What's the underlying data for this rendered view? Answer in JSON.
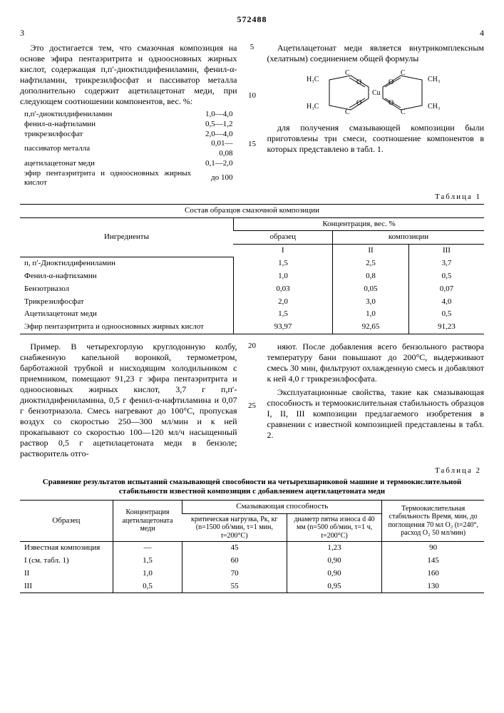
{
  "header": {
    "page_left": "3",
    "patent": "572488",
    "page_right": "4"
  },
  "gutter": [
    "5",
    "10",
    "15",
    "20",
    "25"
  ],
  "left": {
    "p1": "Это достигается тем, что смазочная композиция на основе эфира пентаэритрита и одноосновных жирных кислот, содержащая п,п′-диоктилдифениламин, фенил-α-нафтиламин, трикрезилфосфат и пассиватор металла дополнительно содержит ацетилацетонат меди, при следующем соотношении компонентов, вес. %:",
    "comp": [
      [
        "п,п′-диоктилдифениламин",
        "1,0—4,0"
      ],
      [
        "фенил-α-нафтиламин",
        "0,5—1,2"
      ],
      [
        "трикрезилфосфат",
        "2,0—4,0"
      ],
      [
        "пассиватор металла",
        "0,01—0,08"
      ],
      [
        "ацетилацетонат меди",
        "0,1—2,0"
      ],
      [
        "эфир пентаэритрита и одноосновных жирных кислот",
        "до 100"
      ]
    ]
  },
  "right": {
    "p1": "Ацетилацетонат меди является внутрикомплексным (хелатным) соединением общей формулы",
    "p2": "для получения смазывающей композиции были приготовлены три смеси, соотношение компонентов в которых представлено в табл. 1."
  },
  "table1": {
    "label": "Таблица 1",
    "head0": "Состав образцов смазочной композиции",
    "h_ing": "Ингредиенты",
    "h_conc": "Концентрация, вес. %",
    "h_obr": "образец",
    "h_komp": "композиции",
    "cols": [
      "I",
      "II",
      "III"
    ],
    "rows": [
      [
        "п, п′-Диоктилдифениламин",
        "1,5",
        "2,5",
        "3,7"
      ],
      [
        "Фенил-α-нафтиламин",
        "1,0",
        "0,8",
        "0,5"
      ],
      [
        "Бензотриазол",
        "0,03",
        "0,05",
        "0,07"
      ],
      [
        "Трикрезилфосфат",
        "2,0",
        "3,0",
        "4,0"
      ],
      [
        "Ацетилацетонат меди",
        "1,5",
        "1,0",
        "0,5"
      ],
      [
        "Эфир пентаэритрита и одноосновных жирных кислот",
        "93,97",
        "92,65",
        "91,23"
      ]
    ]
  },
  "left2": {
    "p1": "Пример. В четырехгорлую круглодонную колбу, снабженную капельной воронкой, термометром, барботажной трубкой и нисходящим холодильником с приемником, помещают 91,23 г эфира пентаэритрита и одноосновных жирных кислот, 3,7 г п,п′-диоктилдифениламина, 0,5 г фенил-α-нафтиламина и 0,07 г бензотриазола. Смесь нагревают до 100°С, пропуская воздух со скоростью 250—300 мл/мин и к ней прокапывают со скоростью 100—120 мл/ч насыщенный раствор 0,5 г ацетилацетоната меди в бензоле; растворитель отго-"
  },
  "right2": {
    "p1": "няют. После добавления всего бензольного раствора температуру бани повышают до 200°С, выдерживают смесь 30 мин, фильтруют охлажденную смесь и добавляют к ней 4,0 г трикрезилфосфата.",
    "p2": "Эксплуатационные свойства, такие как смазывающая способность и термоокислительная стабильность образцов I, II, III композиции предлагаемого изобретения в сравнении с известной композицией представлены в табл. 2."
  },
  "table2": {
    "label": "Таблица 2",
    "caption": "Сравнение результатов испытаний смазывающей способности на четырехшариковой машине и термоокислительной стабильности известной композиции с добавлением ацетилацетоната меди",
    "h_obr": "Образец",
    "h_conc": "Концентрация ацетилацетоната меди",
    "h_lub": "Смазывающая способность",
    "h_crit": "критическая нагрузка, Pк, кг (n=1500 об/мин, τ=1 мин, t=200°C)",
    "h_diam": "диаметр пятна износа d 40 мм (n=500 об/мин, τ=1 ч, t=200°C)",
    "h_therm": "Термоокислительная стабильность Время, мин, до поглощения 70 мл O₂ (t=240°, расход O₂ 50 мл/мин)",
    "rows": [
      [
        "Известная композиция",
        "—",
        "45",
        "1,23",
        "90"
      ],
      [
        "I (см. табл. 1)",
        "1,5",
        "60",
        "0,90",
        "145"
      ],
      [
        "II",
        "1,0",
        "70",
        "0,90",
        "160"
      ],
      [
        "III",
        "0,5",
        "55",
        "0,95",
        "130"
      ]
    ]
  },
  "formula_labels": {
    "h3c": "H₃C",
    "ch3": "CH₃",
    "cu": "Cu",
    "o": "O",
    "c": "C"
  }
}
